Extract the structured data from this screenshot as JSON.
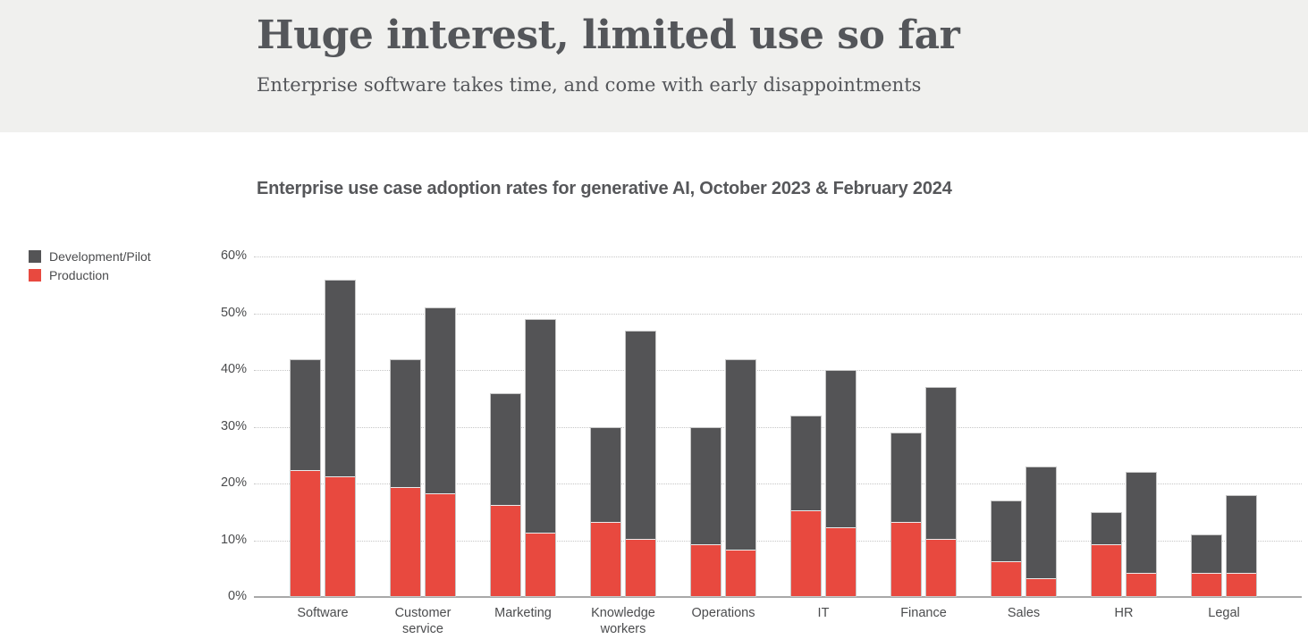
{
  "header": {
    "title": "Huge interest, limited use so far",
    "subtitle": "Enterprise software takes time, and come with early disappointments"
  },
  "chart": {
    "title": "Enterprise use case adoption rates for generative AI, October 2023 & February 2024"
  },
  "legend": {
    "items": [
      {
        "label": "Development/Pilot",
        "color": "#545456"
      },
      {
        "label": "Production",
        "color": "#e8493f"
      }
    ]
  },
  "colors": {
    "development_pilot": "#545456",
    "production": "#e8493f",
    "bar_border": "#c7c7c7",
    "gridline": "#c6c6c6",
    "axis_line": "#a8a8a8",
    "header_background": "#f0f0ee",
    "text": "#4b4c4e"
  },
  "chart_data": {
    "type": "bar",
    "stacked": true,
    "title": "Enterprise use case adoption rates for generative AI, October 2023 & February 2024",
    "xlabel": "",
    "ylabel": "",
    "ylim": [
      0,
      60
    ],
    "yticks": [
      "0%",
      "10%",
      "20%",
      "30%",
      "40%",
      "50%",
      "60%"
    ],
    "ytick_values": [
      0,
      10,
      20,
      30,
      40,
      50,
      60
    ],
    "grid": "dotted horizontal",
    "legend_position": "left",
    "categories": [
      "Software",
      "Customer service",
      "Marketing",
      "Knowledge workers",
      "Operations",
      "IT",
      "Finance",
      "Sales",
      "HR",
      "Legal"
    ],
    "groups": [
      {
        "name": "October 2023",
        "series": [
          {
            "name": "Production",
            "values": [
              22,
              19,
              16,
              13,
              9,
              15,
              13,
              6,
              9,
              4
            ]
          },
          {
            "name": "Development/Pilot",
            "values": [
              20,
              23,
              20,
              17,
              21,
              17,
              16,
              11,
              6,
              7
            ]
          }
        ],
        "totals": [
          42,
          42,
          36,
          30,
          30,
          32,
          29,
          17,
          15,
          11
        ]
      },
      {
        "name": "February 2024",
        "series": [
          {
            "name": "Production",
            "values": [
              21,
              18,
              11,
              10,
              8,
              12,
              10,
              3,
              4,
              4
            ]
          },
          {
            "name": "Development/Pilot",
            "values": [
              35,
              33,
              38,
              37,
              34,
              28,
              27,
              20,
              18,
              14
            ]
          }
        ],
        "totals": [
          56,
          51,
          49,
          47,
          42,
          40,
          37,
          23,
          22,
          18
        ]
      }
    ]
  }
}
